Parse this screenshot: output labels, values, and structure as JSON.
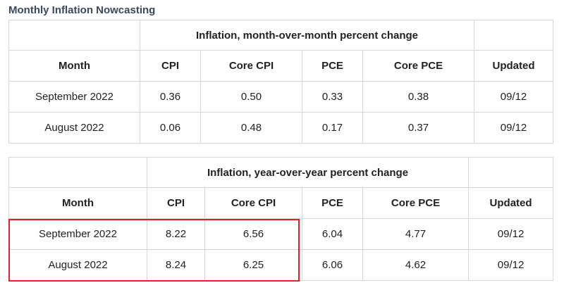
{
  "title": "Monthly Inflation Nowcasting",
  "colors": {
    "highlight": "#e0202a",
    "border": "#d7d7d7",
    "title": "#3a4a5c"
  },
  "mom_table": {
    "group_header": "Inflation, month-over-month percent change",
    "columns": [
      "Month",
      "CPI",
      "Core CPI",
      "PCE",
      "Core PCE",
      "Updated"
    ],
    "rows": [
      [
        "September 2022",
        "0.36",
        "0.50",
        "0.33",
        "0.38",
        "09/12"
      ],
      [
        "August 2022",
        "0.06",
        "0.48",
        "0.17",
        "0.37",
        "09/12"
      ]
    ]
  },
  "yoy_table": {
    "group_header": "Inflation, year-over-year percent change",
    "columns": [
      "Month",
      "CPI",
      "Core CPI",
      "PCE",
      "Core PCE",
      "Updated"
    ],
    "rows": [
      [
        "September 2022",
        "8.22",
        "6.56",
        "6.04",
        "4.77",
        "09/12"
      ],
      [
        "August 2022",
        "8.24",
        "6.25",
        "6.06",
        "4.62",
        "09/12"
      ]
    ]
  }
}
